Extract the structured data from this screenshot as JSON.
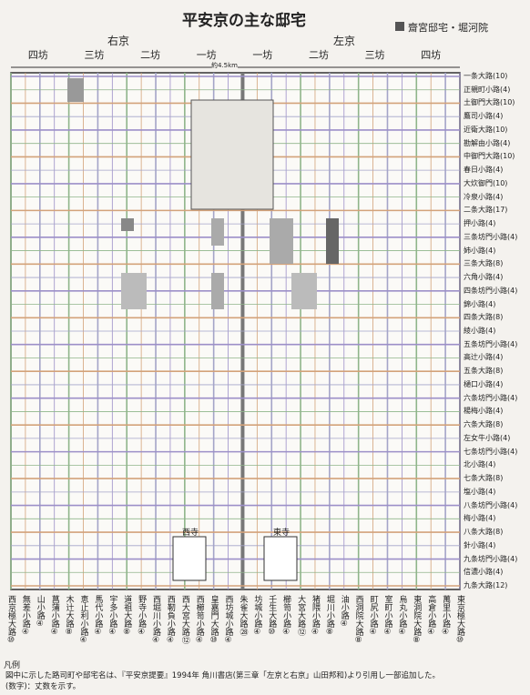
{
  "title": "平安京の主な邸宅",
  "legend": "齋宮邸宅・堀河院",
  "sides": {
    "right": "右京",
    "left": "左京"
  },
  "bo": [
    "四坊",
    "三坊",
    "二坊",
    "一坊",
    "一坊",
    "二坊",
    "三坊",
    "四坊"
  ],
  "distance": "約4.5km",
  "places": {
    "west_temple": "西寺",
    "east_temple": "東寺"
  },
  "ew_streets": [
    "一条大路(10)",
    "正親町小路(4)",
    "土御門大路(10)",
    "鷹司小路(4)",
    "近衛大路(10)",
    "勘解由小路(4)",
    "中御門大路(10)",
    "春日小路(4)",
    "大炊御門(10)",
    "冷泉小路(4)",
    "二条大路(17)",
    "押小路(4)",
    "三条坊門小路(4)",
    "姉小路(4)",
    "三条大路(8)",
    "六角小路(4)",
    "四条坊門小路(4)",
    "錦小路(4)",
    "四条大路(8)",
    "綾小路(4)",
    "五条坊門小路(4)",
    "高辻小路(4)",
    "五条大路(8)",
    "樋口小路(4)",
    "六条坊門小路(4)",
    "楊梅小路(4)",
    "六条大路(8)",
    "左女牛小路(4)",
    "七条坊門小路(4)",
    "北小路(4)",
    "七条大路(8)",
    "塩小路(4)",
    "八条坊門小路(4)",
    "梅小路(4)",
    "八条大路(8)",
    "針小路(4)",
    "九条坊門小路(4)",
    "信濃小路(4)",
    "九条大路(12)"
  ],
  "ns_streets": [
    "西京極大路⑩",
    "無差小路④",
    "山小路④",
    "菖蒲小路④",
    "木辻大路⑧",
    "恵止利小路④",
    "馬代小路④",
    "宇多小路④",
    "道祖大路⑧",
    "野寺小路④",
    "西堀川小路④",
    "西靭負小路④",
    "西大宮大路⑫",
    "西櫛笥小路④",
    "皇嘉門大路⑩",
    "西坊城小路④",
    "朱雀大路㉘",
    "坊城小路④",
    "壬生大路⑩",
    "櫛笥小路④",
    "大宮大路⑫",
    "猪隈小路④",
    "堀川小路⑧",
    "油小路④",
    "西洞院大路⑧",
    "町尻小路④",
    "室町小路④",
    "烏丸小路④",
    "東洞院大路⑧",
    "高倉小路④",
    "萬里小路④",
    "東京極大路⑩"
  ],
  "notes": {
    "heading": "凡例",
    "line1": "図中に示した路司町や邸宅名は、『平安京提要』1994年 角川書店(第三章「左京と右京」山田邦和)より引用し一部追加した。",
    "line2": "(数字)：丈数を示す。"
  }
}
